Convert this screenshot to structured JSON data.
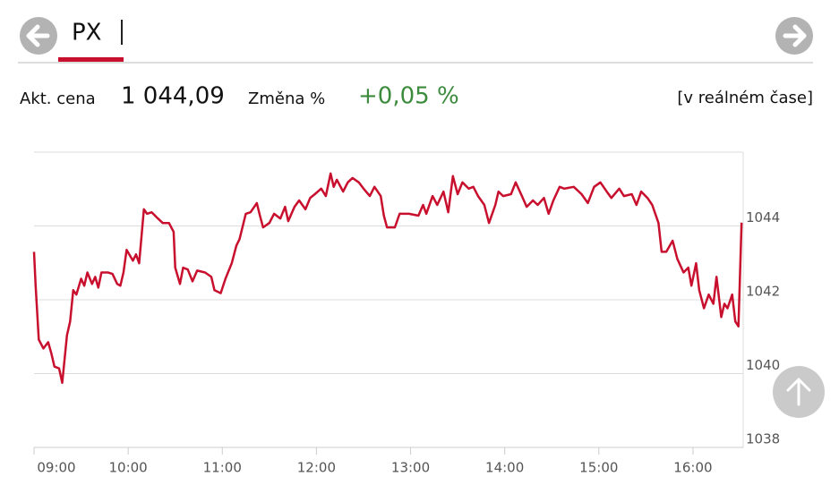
{
  "header": {
    "title": "PX"
  },
  "quote": {
    "price_label": "Akt. cena",
    "price": "1 044,09",
    "change_label": "Změna %",
    "change": "+0,05 %",
    "mode": "[v reálném čase]"
  },
  "chart_data": {
    "type": "line",
    "color": "#c8102e",
    "grid": true,
    "xlim": [
      540,
      992
    ],
    "ylim": [
      1038,
      1046
    ],
    "xticks": [
      {
        "value": 540,
        "label": "09:00"
      },
      {
        "value": 600,
        "label": "10:00"
      },
      {
        "value": 660,
        "label": "11:00"
      },
      {
        "value": 720,
        "label": "12:00"
      },
      {
        "value": 780,
        "label": "13:00"
      },
      {
        "value": 840,
        "label": "14:00"
      },
      {
        "value": 900,
        "label": "15:00"
      },
      {
        "value": 960,
        "label": "16:00"
      }
    ],
    "yticks": [
      1038,
      1040,
      1042,
      1044
    ],
    "x": [
      540,
      541,
      543,
      546,
      549,
      551,
      553,
      556,
      558,
      561,
      563,
      565,
      567,
      570,
      572,
      574,
      577,
      579,
      581,
      583,
      587,
      590,
      593,
      595,
      597,
      599,
      603,
      605,
      607,
      610,
      612,
      615,
      619,
      622,
      626,
      629,
      630,
      633,
      635,
      638,
      641,
      644,
      649,
      653,
      655,
      659,
      662,
      666,
      669,
      671,
      675,
      678,
      682,
      684,
      686,
      690,
      693,
      697,
      700,
      702,
      706,
      709,
      713,
      716,
      719,
      723,
      726,
      729,
      731,
      733,
      737,
      740,
      743,
      747,
      750,
      754,
      757,
      761,
      763,
      765,
      770,
      773,
      779,
      785,
      788,
      790,
      794,
      797,
      801,
      804,
      807,
      810,
      813,
      817,
      820,
      823,
      827,
      830,
      834,
      836,
      839,
      844,
      847,
      851,
      854,
      858,
      861,
      865,
      868,
      871,
      875,
      878,
      884,
      889,
      893,
      897,
      901,
      905,
      908,
      913,
      916,
      921,
      924,
      927,
      931,
      934,
      938,
      940,
      943,
      947,
      950,
      954,
      957,
      959,
      962,
      964,
      967,
      970,
      973,
      975,
      978,
      980,
      982,
      985,
      987,
      989,
      991
    ],
    "values": [
      1043.3,
      1042.38,
      1040.92,
      1040.68,
      1040.85,
      1040.55,
      1040.19,
      1040.14,
      1039.75,
      1041.04,
      1041.41,
      1042.26,
      1042.14,
      1042.57,
      1042.38,
      1042.74,
      1042.43,
      1042.62,
      1042.33,
      1042.74,
      1042.74,
      1042.7,
      1042.43,
      1042.38,
      1042.74,
      1043.35,
      1043.06,
      1043.23,
      1042.99,
      1044.45,
      1044.33,
      1044.37,
      1044.2,
      1044.08,
      1044.08,
      1043.84,
      1042.87,
      1042.43,
      1042.87,
      1042.82,
      1042.5,
      1042.79,
      1042.74,
      1042.62,
      1042.26,
      1042.18,
      1042.57,
      1042.99,
      1043.47,
      1043.64,
      1044.33,
      1044.37,
      1044.62,
      1044.28,
      1043.96,
      1044.08,
      1044.33,
      1044.2,
      1044.52,
      1044.13,
      1044.52,
      1044.69,
      1044.45,
      1044.76,
      1044.86,
      1045.01,
      1044.81,
      1045.42,
      1045.06,
      1045.25,
      1044.93,
      1045.18,
      1045.3,
      1045.18,
      1045.01,
      1044.81,
      1045.06,
      1044.81,
      1044.28,
      1043.96,
      1043.96,
      1044.33,
      1044.33,
      1044.28,
      1044.57,
      1044.33,
      1044.81,
      1044.57,
      1044.93,
      1044.37,
      1045.35,
      1044.86,
      1045.18,
      1045.01,
      1045.06,
      1044.81,
      1044.57,
      1044.08,
      1044.57,
      1044.93,
      1044.81,
      1044.86,
      1045.18,
      1044.81,
      1044.52,
      1044.69,
      1044.57,
      1044.76,
      1044.33,
      1044.69,
      1045.06,
      1045.01,
      1045.06,
      1044.86,
      1044.62,
      1045.06,
      1045.18,
      1044.93,
      1044.76,
      1045.01,
      1044.81,
      1044.86,
      1044.57,
      1044.93,
      1044.76,
      1044.57,
      1044.08,
      1043.3,
      1043.3,
      1043.6,
      1043.11,
      1042.74,
      1042.87,
      1042.38,
      1042.99,
      1042.26,
      1041.77,
      1042.14,
      1041.89,
      1042.62,
      1041.53,
      1041.89,
      1041.77,
      1042.14,
      1041.41,
      1041.28,
      1044.09
    ]
  }
}
